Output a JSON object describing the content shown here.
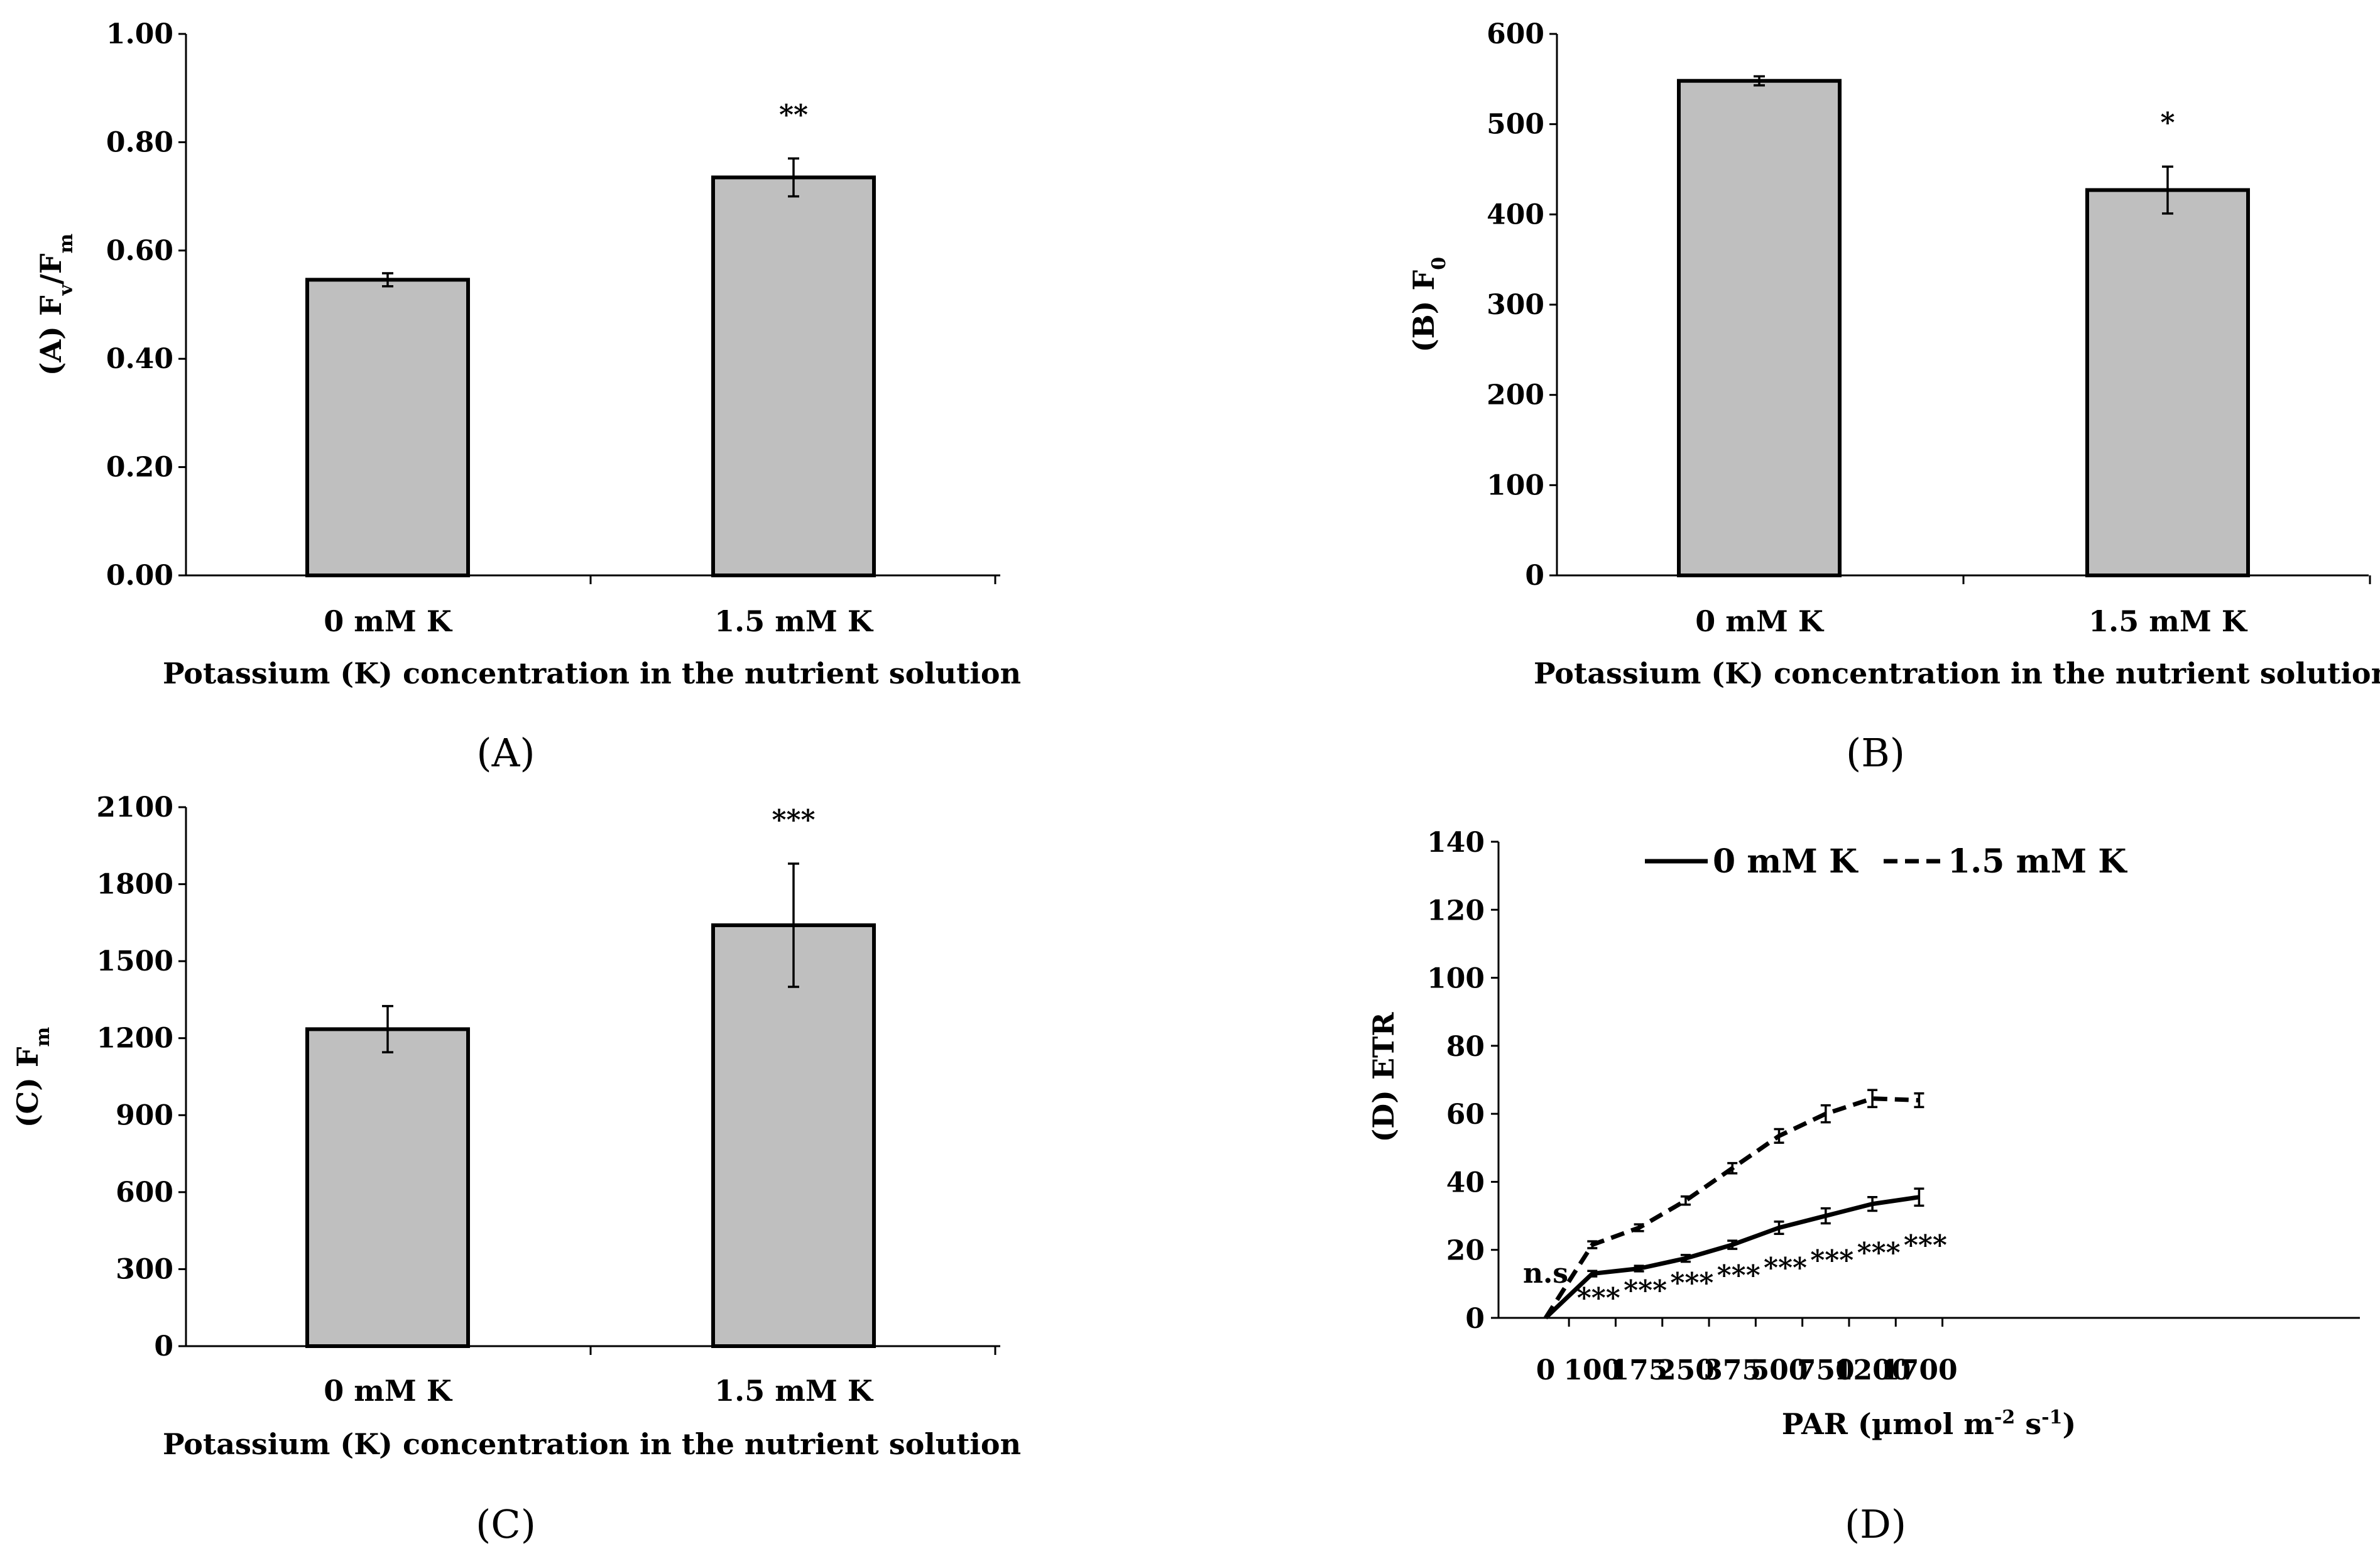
{
  "chart_data": [
    {
      "id": "A",
      "type": "bar",
      "panel_label": "(A)",
      "ylabel": "(A) Fv/Fm",
      "ylabel_main": "(A) F",
      "ylabel_sub1": "v",
      "ylabel_mid": "/F",
      "ylabel_sub2": "m",
      "xlabel": "Potassium (K) concentration in the nutrient solution",
      "categories": [
        "0 mM K",
        "1.5 mM K"
      ],
      "values": [
        0.546,
        0.735
      ],
      "errors": [
        0.012,
        0.035
      ],
      "significance": [
        "",
        "**"
      ],
      "ylim": [
        0,
        1.0
      ],
      "yticks": [
        "0.00",
        "0.20",
        "0.40",
        "0.60",
        "0.80",
        "1.00"
      ]
    },
    {
      "id": "B",
      "type": "bar",
      "panel_label": "(B)",
      "ylabel": "(B) F0",
      "ylabel_main": "(B)  F",
      "ylabel_sub": "0",
      "xlabel": "Potassium (K) concentration in the nutrient solution",
      "categories": [
        "0 mM K",
        "1.5 mM K"
      ],
      "values": [
        548,
        427
      ],
      "errors": [
        5,
        26
      ],
      "significance": [
        "",
        "*"
      ],
      "ylim": [
        0,
        600
      ],
      "yticks": [
        "0",
        "100",
        "200",
        "300",
        "400",
        "500",
        "600"
      ]
    },
    {
      "id": "C",
      "type": "bar",
      "panel_label": "(C)",
      "ylabel": "(C) Fm",
      "ylabel_main": "(C) F",
      "ylabel_sub": "m",
      "xlabel": "Potassium (K) concentration in the nutrient solution",
      "categories": [
        "0 mM K",
        "1.5 mM K"
      ],
      "values": [
        1235,
        1640
      ],
      "errors": [
        90,
        240
      ],
      "significance": [
        "",
        "***"
      ],
      "ylim": [
        0,
        2100
      ],
      "yticks": [
        "0",
        "300",
        "600",
        "900",
        "1200",
        "1500",
        "1800",
        "2100"
      ]
    },
    {
      "id": "D",
      "type": "line",
      "panel_label": "(D)",
      "ylabel": "(D) ETR",
      "xlabel": "PAR (µmol m-2 s-1)",
      "xlabel_pre": "PAR (µmol m",
      "xlabel_sup1": "-2",
      "xlabel_mid": " s",
      "xlabel_sup2": "-1",
      "xlabel_post": ")",
      "x": [
        "0",
        "100",
        "175",
        "250",
        "375",
        "500",
        "750",
        "1200",
        "1700"
      ],
      "ylim": [
        0,
        140
      ],
      "yticks": [
        "0",
        "20",
        "40",
        "60",
        "80",
        "100",
        "120",
        "140"
      ],
      "series": [
        {
          "name": "0 mM K",
          "style": "solid",
          "values": [
            0,
            13,
            14.5,
            17.5,
            21.5,
            26.5,
            30,
            33.5,
            35.5
          ],
          "errors": [
            0,
            0.8,
            0.8,
            1.0,
            1.2,
            1.8,
            2.2,
            2.0,
            2.5
          ]
        },
        {
          "name": "1.5 mM K",
          "style": "dashed",
          "values": [
            0,
            21.5,
            26.5,
            34.5,
            44,
            53.5,
            60,
            64.5,
            64
          ],
          "errors": [
            0,
            1.0,
            1.0,
            1.2,
            1.5,
            2.0,
            2.5,
            2.5,
            2.0
          ]
        }
      ],
      "significance": [
        "n.s",
        "***",
        "***",
        "***",
        "***",
        "***",
        "***",
        "***",
        "***"
      ]
    }
  ]
}
